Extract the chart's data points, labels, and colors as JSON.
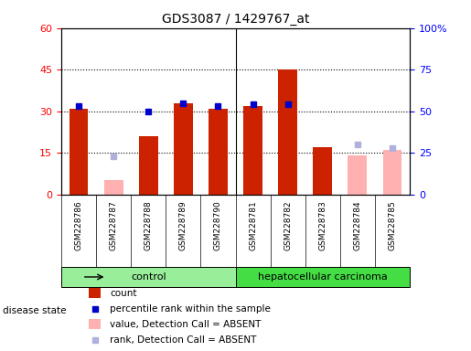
{
  "title": "GDS3087 / 1429767_at",
  "samples": [
    "GSM228786",
    "GSM228787",
    "GSM228788",
    "GSM228789",
    "GSM228790",
    "GSM228781",
    "GSM228782",
    "GSM228783",
    "GSM228784",
    "GSM228785"
  ],
  "count_values": [
    31,
    null,
    21,
    33,
    31,
    32,
    45,
    17,
    null,
    null
  ],
  "rank_values": [
    53,
    null,
    50,
    55,
    53,
    54,
    54,
    null,
    null,
    null
  ],
  "absent_count_values": [
    null,
    5,
    null,
    null,
    null,
    null,
    null,
    null,
    14,
    16
  ],
  "absent_rank_values": [
    null,
    23,
    null,
    null,
    null,
    null,
    null,
    null,
    30,
    28
  ],
  "left_ylim": [
    0,
    60
  ],
  "right_ylim": [
    0,
    100
  ],
  "left_yticks": [
    0,
    15,
    30,
    45,
    60
  ],
  "right_yticks": [
    0,
    25,
    50,
    75,
    100
  ],
  "right_yticklabels": [
    "0",
    "25",
    "50",
    "75",
    "100%"
  ],
  "control_count": 5,
  "total_count": 10,
  "bar_color_present": "#cc2200",
  "bar_color_absent": "#ffb0b0",
  "dot_color_present": "#0000cc",
  "dot_color_absent": "#b0b0dd",
  "control_label": "control",
  "cancer_label": "hepatocellular carcinoma",
  "disease_state_label": "disease state",
  "group_bar_color_control": "#99ee99",
  "group_bar_color_cancer": "#44dd44",
  "xlabel_area_color": "#cccccc",
  "legend_items": [
    "count",
    "percentile rank within the sample",
    "value, Detection Call = ABSENT",
    "rank, Detection Call = ABSENT"
  ]
}
